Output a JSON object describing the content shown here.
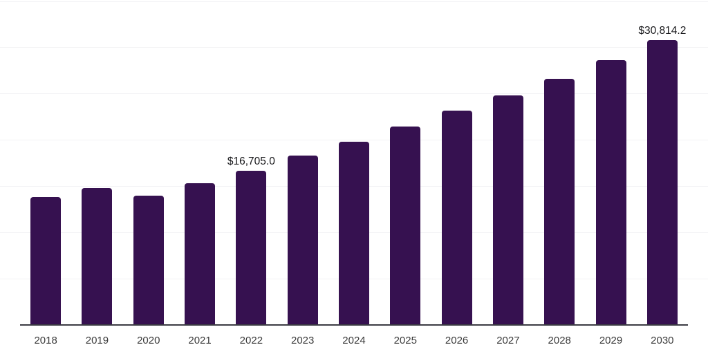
{
  "chart_data": {
    "type": "bar",
    "categories": [
      "2018",
      "2019",
      "2020",
      "2021",
      "2022",
      "2023",
      "2024",
      "2025",
      "2026",
      "2027",
      "2028",
      "2029",
      "2030"
    ],
    "values": [
      13870,
      14820,
      13950,
      15310,
      16705.0,
      18290,
      19800,
      21440,
      23160,
      24810,
      26650,
      28620,
      30814.2
    ],
    "title": "",
    "xlabel": "",
    "ylabel": "",
    "ylim": [
      0,
      35000
    ],
    "grid_step": 5000,
    "grid": true,
    "legend": "none",
    "y_axis_labels_visible": false,
    "bar_color": "#361150",
    "annotations": [
      {
        "index": 4,
        "category": "2022",
        "text": "$16,705.0"
      },
      {
        "index": 12,
        "category": "2030",
        "text": "$30,814.2"
      }
    ]
  },
  "colors": {
    "background": "#ffffff",
    "bar": "#361150",
    "gridline": "#f2f2f4",
    "axis_line": "#3b3b43",
    "tick_label": "#3a3a3a",
    "annotation_text": "#17171a"
  }
}
